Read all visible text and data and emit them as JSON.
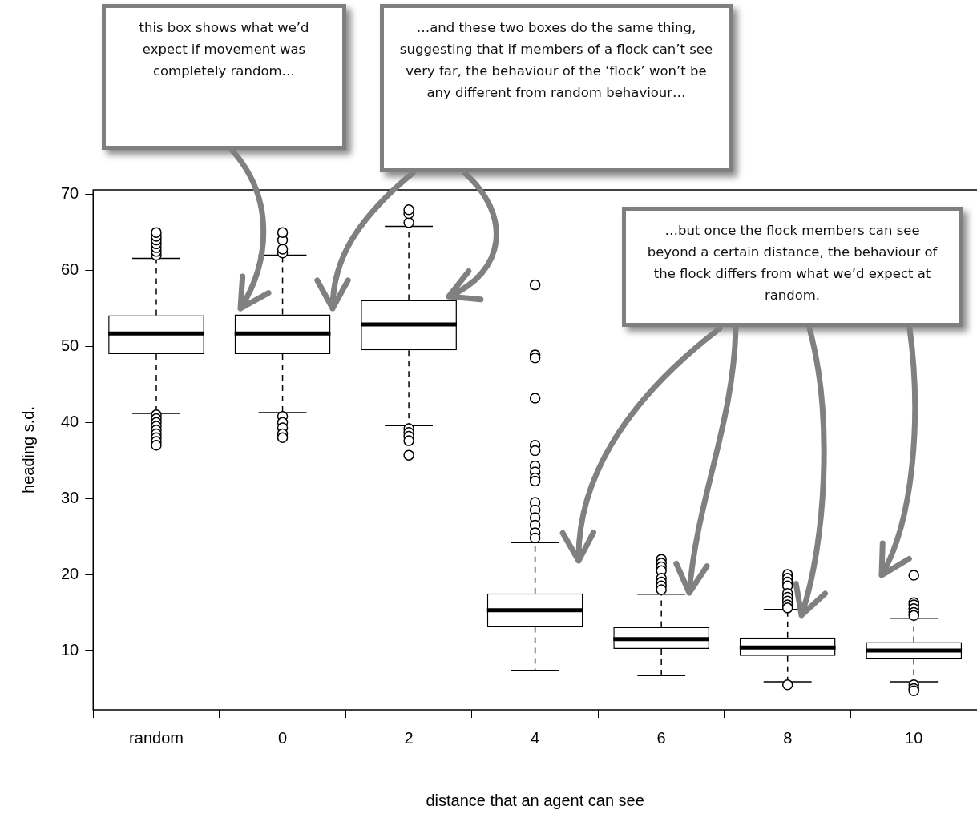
{
  "chart_data": {
    "type": "box",
    "xlabel": "distance that an agent can see",
    "ylabel": "heading s.d.",
    "categories": [
      "random",
      "0",
      "2",
      "4",
      "6",
      "8",
      "10"
    ],
    "boxes": [
      {
        "low": 41.2,
        "q1": 49.0,
        "median": 51.7,
        "q3": 54.1,
        "high": 61.6,
        "outliers": [
          62.0,
          62.5,
          63.0,
          63.5,
          64.0,
          64.5,
          65.0,
          41.0,
          40.5,
          40.0,
          39.5,
          39.0,
          38.5,
          38.0,
          37.5,
          37.0
        ]
      },
      {
        "low": 41.3,
        "q1": 49.0,
        "median": 51.7,
        "q3": 54.2,
        "high": 62.0,
        "outliers": [
          62.3,
          62.8,
          64.0,
          65.0,
          40.8,
          40.0,
          39.3,
          38.5,
          38.0
        ]
      },
      {
        "low": 39.6,
        "q1": 49.5,
        "median": 52.9,
        "q3": 56.1,
        "high": 65.8,
        "outliers": [
          66.3,
          67.5,
          68.0,
          39.2,
          38.7,
          38.2,
          37.6,
          35.7
        ]
      },
      {
        "low": 7.4,
        "q1": 13.1,
        "median": 15.3,
        "q3": 17.5,
        "high": 24.2,
        "outliers": [
          58.1,
          48.9,
          48.5,
          43.2,
          37.0,
          36.3,
          34.3,
          33.5,
          32.7,
          32.3,
          29.5,
          28.5,
          27.5,
          26.5,
          25.5,
          24.8
        ]
      },
      {
        "low": 6.7,
        "q1": 10.2,
        "median": 11.5,
        "q3": 13.1,
        "high": 17.4,
        "outliers": [
          22.0,
          21.5,
          21.0,
          20.5,
          19.5,
          19.0,
          18.5,
          18.0
        ]
      },
      {
        "low": 5.9,
        "q1": 9.3,
        "median": 10.4,
        "q3": 11.7,
        "high": 15.4,
        "outliers": [
          20.0,
          19.5,
          19.0,
          18.5,
          17.5,
          17.0,
          16.5,
          16.0,
          15.6,
          5.5
        ]
      },
      {
        "low": 5.9,
        "q1": 8.9,
        "median": 10.0,
        "q3": 11.1,
        "high": 14.2,
        "outliers": [
          19.9,
          16.3,
          16.0,
          15.5,
          15.0,
          14.6,
          5.5,
          5.0,
          4.7
        ]
      }
    ],
    "ylim": [
      2.2,
      70.6
    ],
    "yticks": [
      10,
      20,
      30,
      40,
      50,
      60,
      70
    ],
    "annotations": [
      "this box shows what we’d expect if movement was completely random…",
      "…and these two boxes do the same thing, suggesting that if members of a flock can’t see very far, the behaviour of the ‘flock’ won’t be any different from random behaviour…",
      "…but once the flock members can see beyond a certain distance, the behaviour of the flock differs from what we’d expect at random."
    ]
  }
}
